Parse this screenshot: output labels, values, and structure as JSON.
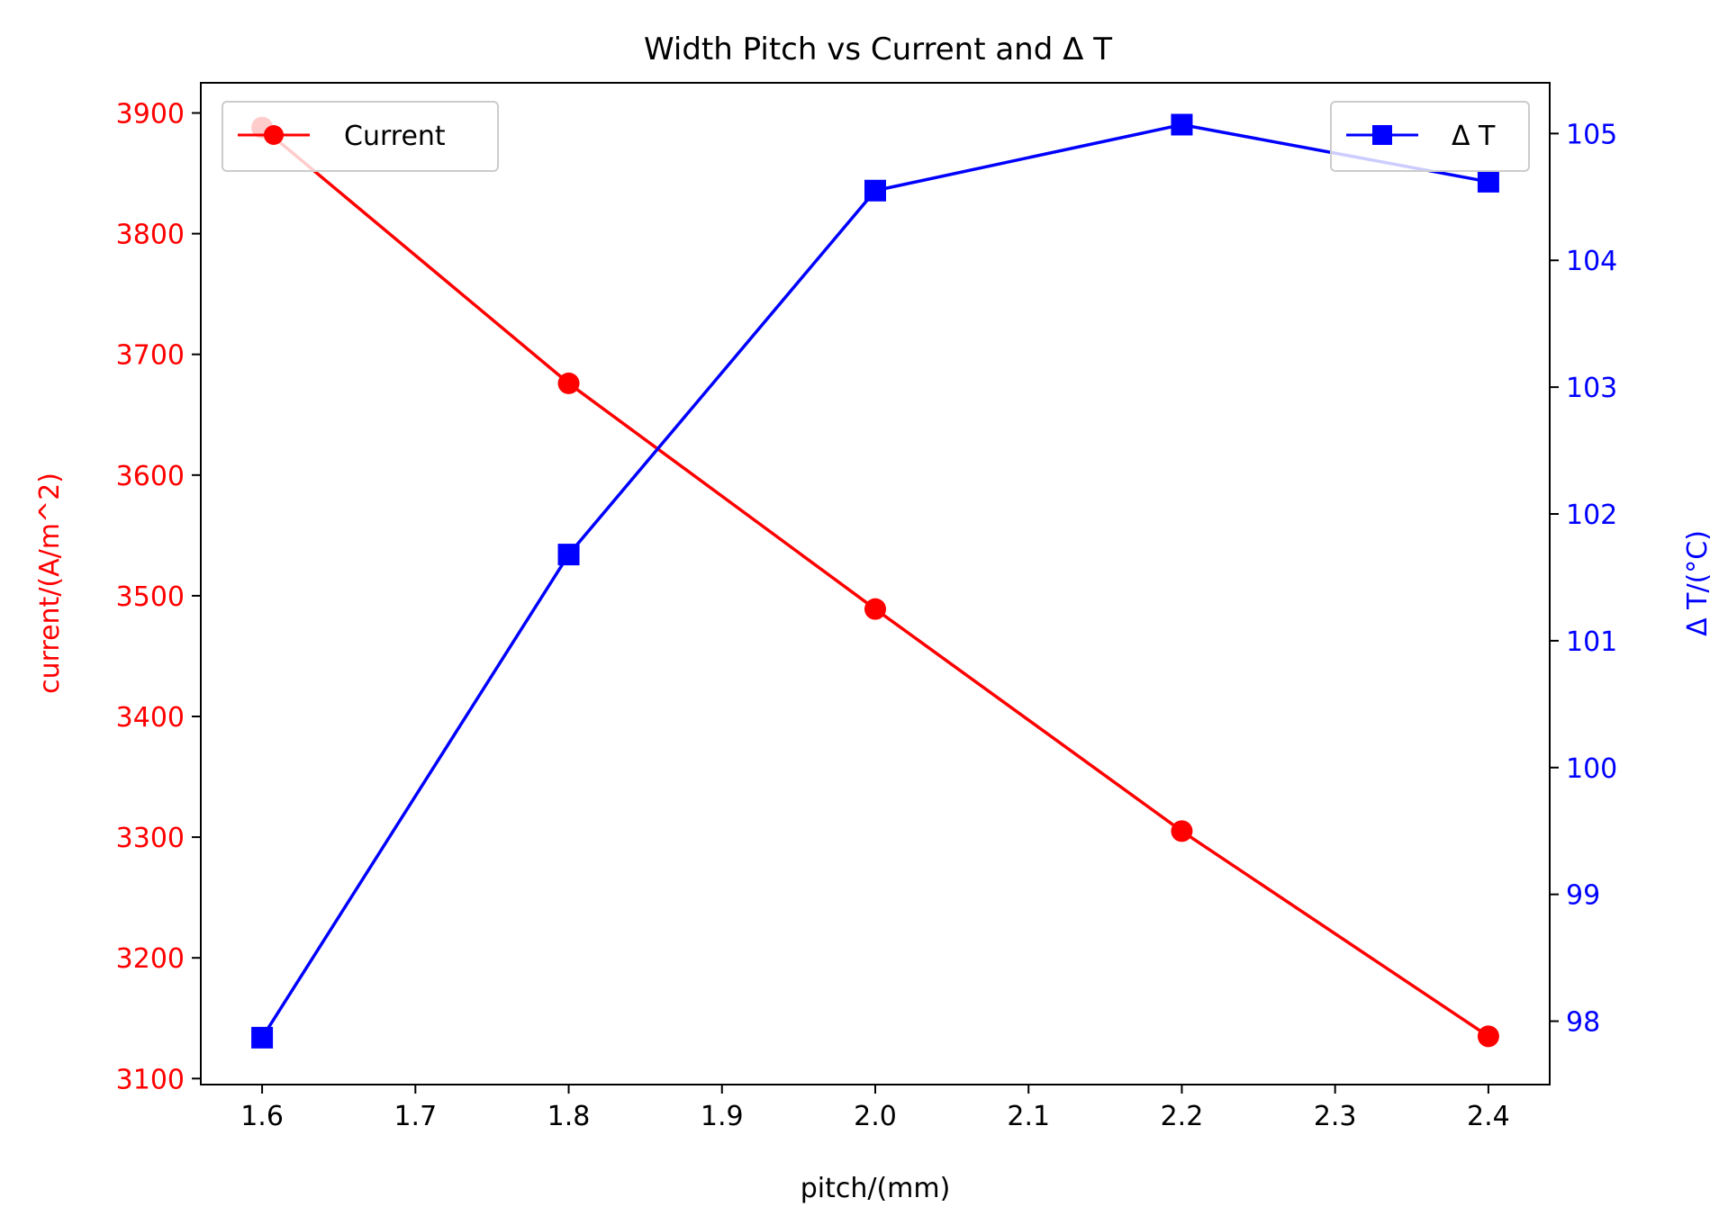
{
  "chart_data": {
    "type": "line",
    "title": "Width Pitch vs Current and Δ T",
    "xlabel": "pitch/(mm)",
    "ylabel_left": "current/(A/m^2)",
    "ylabel_right": "Δ T/(°C)",
    "x": [
      1.6,
      1.8,
      2.0,
      2.2,
      2.4
    ],
    "xlim": [
      1.56,
      2.44
    ],
    "x_ticks": [
      "1.6",
      "1.7",
      "1.8",
      "1.9",
      "2.0",
      "2.1",
      "2.2",
      "2.3",
      "2.4"
    ],
    "ylim_left": [
      3095,
      3925
    ],
    "y_ticks_left": [
      "3100",
      "3200",
      "3300",
      "3400",
      "3500",
      "3600",
      "3700",
      "3800",
      "3900"
    ],
    "ylim_right": [
      97.5,
      105.4
    ],
    "y_ticks_right": [
      "98",
      "99",
      "100",
      "101",
      "102",
      "103",
      "104",
      "105"
    ],
    "grid": false,
    "series": [
      {
        "name": "Current",
        "axis": "left",
        "color": "#ff0000",
        "marker": "circle",
        "values": [
          3888,
          3676,
          3489,
          3305,
          3135
        ],
        "legend_position": "top-left"
      },
      {
        "name": "Δ T",
        "axis": "right",
        "color": "#0000ff",
        "marker": "square",
        "values": [
          97.87,
          101.68,
          104.55,
          105.07,
          104.62
        ],
        "legend_position": "top-right"
      }
    ]
  }
}
